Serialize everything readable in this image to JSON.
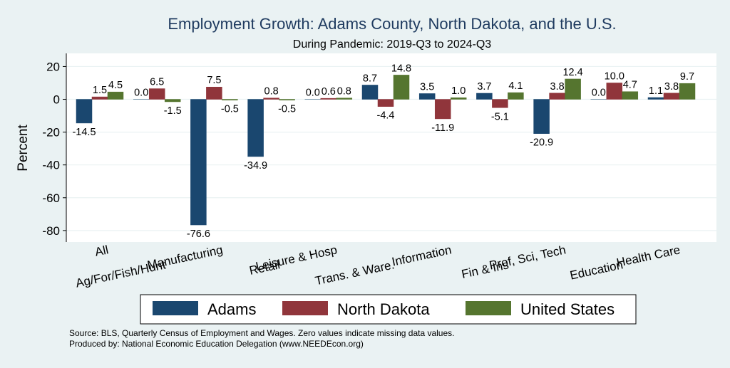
{
  "chart_data": {
    "type": "bar",
    "title": "Employment Growth: Adams County, North Dakota, and the U.S.",
    "subtitle": "During Pandemic: 2019-Q3 to 2024-Q3",
    "ylabel": "Percent",
    "xlabel": "",
    "ylim": [
      -87,
      28
    ],
    "yticks": [
      20,
      0,
      -20,
      -40,
      -60,
      -80
    ],
    "ytick_labels": [
      "20",
      "0",
      "-20",
      "-40",
      "-60",
      "-80"
    ],
    "grid": true,
    "legend_position": "bottom",
    "categories": [
      "All",
      "Ag/For/Fish/Hunt",
      "Manufacturing",
      "Retail",
      "Leisure & Hosp",
      "Trans. & Ware.",
      "Information",
      "Fin & Ins",
      "Prof, Sci, Tech",
      "Education",
      "Health Care"
    ],
    "series": [
      {
        "name": "Adams",
        "color": "#1a476f",
        "values": [
          -14.5,
          0.0,
          -76.6,
          -34.9,
          0.0,
          8.7,
          3.5,
          3.7,
          -20.9,
          0.0,
          1.1
        ],
        "labels": [
          "-14.5",
          "0.0",
          "-76.6",
          "-34.9",
          "0.0",
          "8.7",
          "3.5",
          "3.7",
          "-20.9",
          "0.0",
          "1.1"
        ]
      },
      {
        "name": "North Dakota",
        "color": "#90353b",
        "values": [
          1.5,
          6.5,
          7.5,
          0.8,
          0.6,
          -4.4,
          -11.9,
          -5.1,
          3.8,
          10.0,
          3.8
        ],
        "labels": [
          "1.5",
          "6.5",
          "7.5",
          "0.8",
          "0.6",
          "-4.4",
          "-11.9",
          "-5.1",
          "3.8",
          "10.0",
          "3.8"
        ]
      },
      {
        "name": "United States",
        "color": "#55752f",
        "values": [
          4.5,
          -1.5,
          -0.5,
          -0.5,
          0.8,
          14.8,
          1.0,
          4.1,
          12.4,
          4.7,
          9.7
        ],
        "labels": [
          "4.5",
          "-1.5",
          "-0.5",
          "-0.5",
          "0.8",
          "14.8",
          "1.0",
          "4.1",
          "12.4",
          "4.7",
          "9.7"
        ]
      }
    ],
    "notes": [
      "Source: BLS, Quarterly Census of Employment and Wages. Zero values indicate missing data values.",
      "Produced by: National Economic Education Delegation (www.NEEDEcon.org)"
    ]
  }
}
